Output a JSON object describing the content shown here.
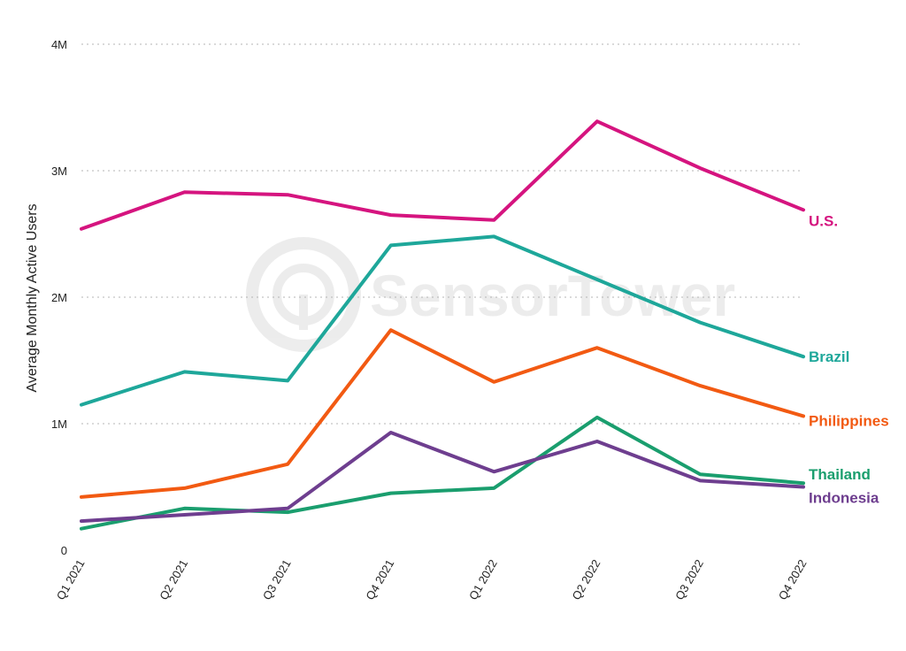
{
  "chart_data": {
    "type": "line",
    "categories": [
      "Q1 2021",
      "Q2 2021",
      "Q3 2021",
      "Q4 2021",
      "Q1 2022",
      "Q2 2022",
      "Q3 2022",
      "Q4 2022"
    ],
    "ylabel": "Average Monthly Active Users",
    "ylim": [
      0,
      4000000
    ],
    "yticks": [
      {
        "value": 0,
        "label": "0"
      },
      {
        "value": 1000000,
        "label": "1M"
      },
      {
        "value": 2000000,
        "label": "2M"
      },
      {
        "value": 3000000,
        "label": "3M"
      },
      {
        "value": 4000000,
        "label": "4M"
      }
    ],
    "grid": true,
    "legend": "inline labels at line ends",
    "watermark": "SensorTower",
    "series": [
      {
        "name": "U.S.",
        "color": "#d5147f",
        "values": [
          2540000,
          2830000,
          2810000,
          2650000,
          2610000,
          3390000,
          3020000,
          2690000
        ]
      },
      {
        "name": "Brazil",
        "color": "#1ea79a",
        "values": [
          1150000,
          1410000,
          1340000,
          2410000,
          2480000,
          2140000,
          1800000,
          1530000
        ]
      },
      {
        "name": "Philippines",
        "color": "#f25a12",
        "values": [
          420000,
          490000,
          680000,
          1740000,
          1330000,
          1600000,
          1300000,
          1060000
        ]
      },
      {
        "name": "Thailand",
        "color": "#1a9e6e",
        "values": [
          170000,
          330000,
          300000,
          450000,
          490000,
          1050000,
          600000,
          530000
        ]
      },
      {
        "name": "Indonesia",
        "color": "#6e3e8f",
        "values": [
          230000,
          280000,
          330000,
          930000,
          620000,
          860000,
          550000,
          500000
        ]
      }
    ]
  }
}
